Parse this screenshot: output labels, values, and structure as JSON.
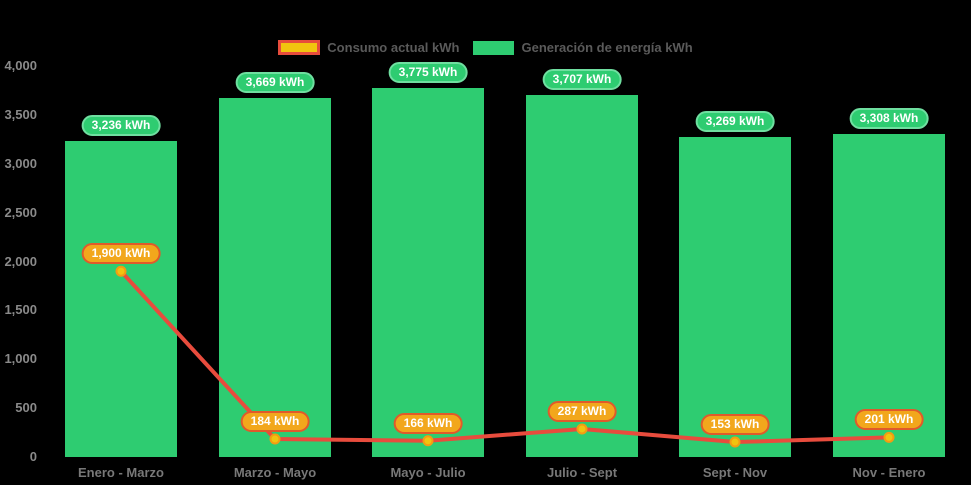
{
  "chart_data": {
    "type": "bar+line",
    "title": "",
    "xlabel": "",
    "ylabel": "",
    "categories": [
      "Enero - Marzo",
      "Marzo - Mayo",
      "Mayo - Julio",
      "Julio - Sept",
      "Sept - Nov",
      "Nov - Enero"
    ],
    "series": [
      {
        "name": "Generación de energía kWh",
        "type": "bar",
        "color": "#2ecc71",
        "values": [
          3236,
          3669,
          3775,
          3707,
          3269,
          3308
        ],
        "labels": [
          "3,236 kWh",
          "3,669 kWh",
          "3,775 kWh",
          "3,707 kWh",
          "3,269 kWh",
          "3,308 kWh"
        ]
      },
      {
        "name": "Consumo actual kWh",
        "type": "line",
        "color": "#e84c3d",
        "point_fill": "#f1c40f",
        "point_stroke": "#f39c12",
        "values": [
          1900,
          184,
          166,
          287,
          153,
          201
        ],
        "labels": [
          "1,900 kWh",
          "184 kWh",
          "166 kWh",
          "287 kWh",
          "153 kWh",
          "201 kWh"
        ]
      }
    ],
    "y_ticks": [
      {
        "value": 4000,
        "label": "4,000"
      },
      {
        "value": 3500,
        "label": "3,500"
      },
      {
        "value": 3000,
        "label": "3,000"
      },
      {
        "value": 2500,
        "label": "2,500"
      },
      {
        "value": 2000,
        "label": "2,000"
      },
      {
        "value": 1500,
        "label": "1,500"
      },
      {
        "value": 1000,
        "label": "1,000"
      },
      {
        "value": 500,
        "label": "500"
      },
      {
        "value": 0,
        "label": "0"
      }
    ],
    "ylim": [
      0,
      4000
    ],
    "grid": false,
    "legend_position": "top",
    "background_color": "#000000"
  },
  "colors": {
    "bar": "#2ecc71",
    "bar_pill_border": "#6fdfa0",
    "line": "#e84c3d",
    "point_fill": "#f1c40f",
    "point_stroke": "#f39c12",
    "orange_pill_fill": "#f2a71c",
    "orange_pill_border": "#e05a2b",
    "legend_consumo_swatch_fill": "#f1c40f",
    "legend_consumo_swatch_border": "#e74c3c",
    "axis_text": "#8a8a8a"
  }
}
